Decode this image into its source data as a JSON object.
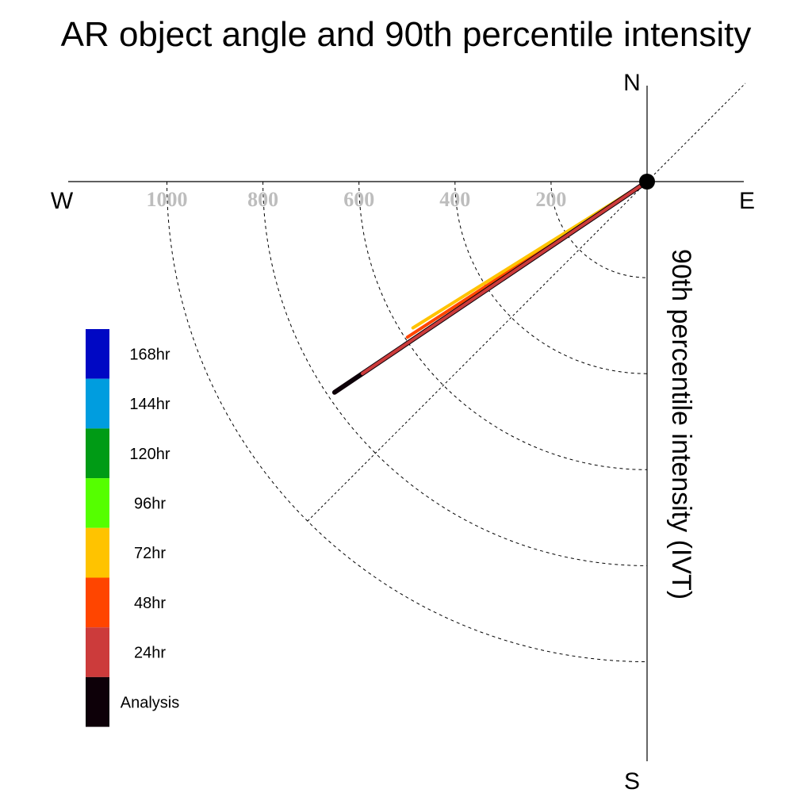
{
  "chart_data": {
    "type": "polar-vector",
    "title": "AR object angle and 90th percentile intensity",
    "radial_label": "90th percentile intensity (IVT)",
    "compass": {
      "north": "N",
      "south": "S",
      "east": "E",
      "west": "W"
    },
    "radial_ticks": [
      200,
      400,
      600,
      800,
      1000
    ],
    "radial_tick_labels": [
      "200",
      "400",
      "600",
      "800",
      "1000"
    ],
    "legend": [
      {
        "name": "168hr",
        "color": "#0008c4"
      },
      {
        "name": "144hr",
        "color": "#009ddf"
      },
      {
        "name": "120hr",
        "color": "#009b15"
      },
      {
        "name": "96hr",
        "color": "#55ff00"
      },
      {
        "name": "72hr",
        "color": "#ffc300"
      },
      {
        "name": "48hr",
        "color": "#ff4500"
      },
      {
        "name": "24hr",
        "color": "#cc3b3b"
      },
      {
        "name": "Analysis",
        "color": "#0d0008"
      }
    ],
    "series": [
      {
        "name": "48hr",
        "direction_deg": 237,
        "intensity": 595,
        "color": "#ff4500"
      },
      {
        "name": "72hr",
        "direction_deg": 238,
        "intensity": 575,
        "color": "#ffc300"
      },
      {
        "name": "Analysis",
        "direction_deg": 236,
        "intensity": 785,
        "color": "#0d0008"
      },
      {
        "name": "24hr",
        "direction_deg": 236,
        "intensity": 715,
        "color": "#cc3b3b"
      }
    ]
  }
}
